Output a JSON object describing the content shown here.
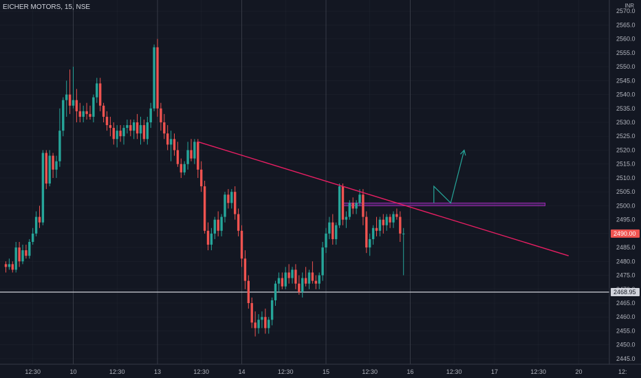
{
  "header": {
    "symbol_label": "EICHER MOTORS, 15, NSE",
    "currency": "INR"
  },
  "colors": {
    "background": "#131722",
    "grid": "#2a2e39",
    "up": "#26a69a",
    "down": "#ef5350",
    "trendline": "#e91e63",
    "zone_border": "#9c27b0",
    "zone_fill": "#5b2a7a",
    "projection": "#26a69a",
    "hline": "#d1d4dc",
    "axis_text": "#b2b5be"
  },
  "chart_data": {
    "type": "candlestick",
    "title": "EICHER MOTORS, 15, NSE",
    "ylim": [
      2443,
      2574
    ],
    "y_ticks": [
      2445,
      2450,
      2455,
      2460,
      2465,
      2470,
      2475,
      2480,
      2485,
      2490,
      2495,
      2500,
      2505,
      2510,
      2515,
      2520,
      2525,
      2530,
      2535,
      2540,
      2545,
      2550,
      2555,
      2560,
      2565,
      2570
    ],
    "x_ticks": [
      {
        "label": "12:30",
        "bar": 8
      },
      {
        "label": "10",
        "bar": 20
      },
      {
        "label": "12:30",
        "bar": 33
      },
      {
        "label": "13",
        "bar": 45
      },
      {
        "label": "12:30",
        "bar": 58
      },
      {
        "label": "14",
        "bar": 70
      },
      {
        "label": "12:30",
        "bar": 83
      },
      {
        "label": "15",
        "bar": 95
      },
      {
        "label": "12:30",
        "bar": 108
      },
      {
        "label": "16",
        "bar": 120
      },
      {
        "label": "12:30",
        "bar": 133
      },
      {
        "label": "17",
        "bar": 145
      },
      {
        "label": "12:30",
        "bar": 158
      },
      {
        "label": "20",
        "bar": 170
      },
      {
        "label": "12:",
        "bar": 183
      }
    ],
    "day_separators": [
      20,
      45,
      70,
      95,
      120
    ],
    "candles": [
      [
        2479,
        2480,
        2476,
        2478
      ],
      [
        2478,
        2481,
        2477,
        2479
      ],
      [
        2479,
        2480,
        2476,
        2477
      ],
      [
        2477,
        2487,
        2476,
        2485
      ],
      [
        2485,
        2487,
        2478,
        2480
      ],
      [
        2480,
        2486,
        2479,
        2484
      ],
      [
        2484,
        2486,
        2481,
        2482
      ],
      [
        2482,
        2488,
        2481,
        2487
      ],
      [
        2487,
        2492,
        2486,
        2490
      ],
      [
        2490,
        2498,
        2489,
        2496
      ],
      [
        2496,
        2500,
        2492,
        2494
      ],
      [
        2494,
        2520,
        2493,
        2519
      ],
      [
        2519,
        2520,
        2506,
        2508
      ],
      [
        2508,
        2520,
        2507,
        2518
      ],
      [
        2518,
        2519,
        2510,
        2513
      ],
      [
        2513,
        2518,
        2510,
        2516
      ],
      [
        2516,
        2535,
        2514,
        2527
      ],
      [
        2527,
        2539,
        2525,
        2538
      ],
      [
        2538,
        2545,
        2532,
        2540
      ],
      [
        2540,
        2549,
        2533,
        2536
      ],
      [
        2536,
        2550,
        2535,
        2538
      ],
      [
        2538,
        2542,
        2530,
        2534
      ],
      [
        2534,
        2537,
        2530,
        2532
      ],
      [
        2532,
        2536,
        2530,
        2534
      ],
      [
        2534,
        2537,
        2531,
        2533
      ],
      [
        2533,
        2536,
        2531,
        2532
      ],
      [
        2532,
        2540,
        2530,
        2539
      ],
      [
        2539,
        2546,
        2537,
        2544
      ],
      [
        2544,
        2546,
        2534,
        2536
      ],
      [
        2536,
        2537,
        2530,
        2532
      ],
      [
        2532,
        2534,
        2527,
        2529
      ],
      [
        2529,
        2532,
        2525,
        2528
      ],
      [
        2528,
        2530,
        2522,
        2524
      ],
      [
        2524,
        2529,
        2521,
        2527
      ],
      [
        2527,
        2529,
        2523,
        2525
      ],
      [
        2525,
        2529,
        2522,
        2528
      ],
      [
        2528,
        2531,
        2526,
        2529
      ],
      [
        2529,
        2531,
        2525,
        2527
      ],
      [
        2527,
        2531,
        2524,
        2530
      ],
      [
        2530,
        2533,
        2524,
        2526
      ],
      [
        2526,
        2532,
        2522,
        2529
      ],
      [
        2529,
        2531,
        2523,
        2524
      ],
      [
        2524,
        2532,
        2522,
        2530
      ],
      [
        2530,
        2537,
        2528,
        2535
      ],
      [
        2535,
        2558,
        2534,
        2557
      ],
      [
        2557,
        2560,
        2532,
        2535
      ],
      [
        2535,
        2537,
        2527,
        2530
      ],
      [
        2530,
        2533,
        2524,
        2526
      ],
      [
        2526,
        2529,
        2520,
        2522
      ],
      [
        2522,
        2527,
        2516,
        2524
      ],
      [
        2524,
        2526,
        2518,
        2520
      ],
      [
        2520,
        2523,
        2514,
        2515
      ],
      [
        2515,
        2517,
        2510,
        2512
      ],
      [
        2512,
        2516,
        2511,
        2515
      ],
      [
        2515,
        2523,
        2513,
        2520
      ],
      [
        2520,
        2524,
        2516,
        2517
      ],
      [
        2517,
        2524,
        2515,
        2523
      ],
      [
        2523,
        2524,
        2510,
        2513
      ],
      [
        2513,
        2516,
        2505,
        2507
      ],
      [
        2507,
        2509,
        2490,
        2491
      ],
      [
        2491,
        2494,
        2484,
        2486
      ],
      [
        2486,
        2492,
        2484,
        2490
      ],
      [
        2490,
        2496,
        2488,
        2495
      ],
      [
        2495,
        2498,
        2489,
        2491
      ],
      [
        2491,
        2497,
        2489,
        2496
      ],
      [
        2496,
        2505,
        2494,
        2504
      ],
      [
        2504,
        2506,
        2499,
        2501
      ],
      [
        2501,
        2506,
        2499,
        2505
      ],
      [
        2505,
        2507,
        2495,
        2497
      ],
      [
        2497,
        2499,
        2489,
        2491
      ],
      [
        2491,
        2493,
        2478,
        2481
      ],
      [
        2481,
        2484,
        2470,
        2473
      ],
      [
        2473,
        2475,
        2463,
        2465
      ],
      [
        2465,
        2467,
        2456,
        2458
      ],
      [
        2458,
        2462,
        2453,
        2456
      ],
      [
        2456,
        2461,
        2454,
        2459
      ],
      [
        2459,
        2462,
        2456,
        2460
      ],
      [
        2460,
        2463,
        2454,
        2456
      ],
      [
        2456,
        2460,
        2454,
        2459
      ],
      [
        2459,
        2467,
        2457,
        2466
      ],
      [
        2466,
        2473,
        2464,
        2472
      ],
      [
        2472,
        2476,
        2469,
        2474
      ],
      [
        2474,
        2476,
        2470,
        2471
      ],
      [
        2471,
        2478,
        2470,
        2476
      ],
      [
        2476,
        2479,
        2472,
        2474
      ],
      [
        2474,
        2478,
        2472,
        2477
      ],
      [
        2477,
        2479,
        2470,
        2472
      ],
      [
        2472,
        2475,
        2468,
        2469
      ],
      [
        2469,
        2476,
        2467,
        2474
      ],
      [
        2474,
        2478,
        2471,
        2472
      ],
      [
        2472,
        2477,
        2470,
        2476
      ],
      [
        2476,
        2480,
        2472,
        2473
      ],
      [
        2473,
        2475,
        2470,
        2472
      ],
      [
        2472,
        2476,
        2470,
        2475
      ],
      [
        2475,
        2487,
        2473,
        2485
      ],
      [
        2485,
        2492,
        2483,
        2490
      ],
      [
        2490,
        2496,
        2488,
        2494
      ],
      [
        2494,
        2497,
        2486,
        2488
      ],
      [
        2488,
        2494,
        2486,
        2493
      ],
      [
        2493,
        2508,
        2492,
        2507
      ],
      [
        2507,
        2508,
        2493,
        2495
      ],
      [
        2495,
        2498,
        2492,
        2496
      ],
      [
        2496,
        2502,
        2495,
        2501
      ],
      [
        2501,
        2503,
        2497,
        2499
      ],
      [
        2499,
        2502,
        2497,
        2501
      ],
      [
        2501,
        2506,
        2500,
        2504
      ],
      [
        2504,
        2506,
        2493,
        2496
      ],
      [
        2496,
        2498,
        2483,
        2485
      ],
      [
        2485,
        2490,
        2482,
        2488
      ],
      [
        2488,
        2493,
        2486,
        2492
      ],
      [
        2492,
        2496,
        2489,
        2491
      ],
      [
        2491,
        2496,
        2489,
        2495
      ],
      [
        2495,
        2497,
        2490,
        2493
      ],
      [
        2493,
        2497,
        2491,
        2496
      ],
      [
        2496,
        2497,
        2492,
        2494
      ],
      [
        2494,
        2498,
        2492,
        2497
      ],
      [
        2497,
        2499,
        2495,
        2496
      ],
      [
        2496,
        2498,
        2487,
        2490
      ],
      [
        2490,
        2492,
        2475,
        2490
      ]
    ],
    "trendline": [
      {
        "bar": 57,
        "price": 2523
      },
      {
        "bar": 167,
        "price": 2482
      }
    ],
    "zone": {
      "bar_start": 100,
      "bar_end": 160,
      "price_top": 2501,
      "price_bottom": 2500
    },
    "projection_arrow": [
      {
        "bar": 127,
        "price": 2501
      },
      {
        "bar": 127,
        "price": 2507
      },
      {
        "bar": 132,
        "price": 2501
      },
      {
        "bar": 136,
        "price": 2520
      }
    ],
    "hline": {
      "price": 2468.95,
      "label": "2468.95"
    },
    "last_price": {
      "price": 2490,
      "label": "2490.00"
    }
  }
}
